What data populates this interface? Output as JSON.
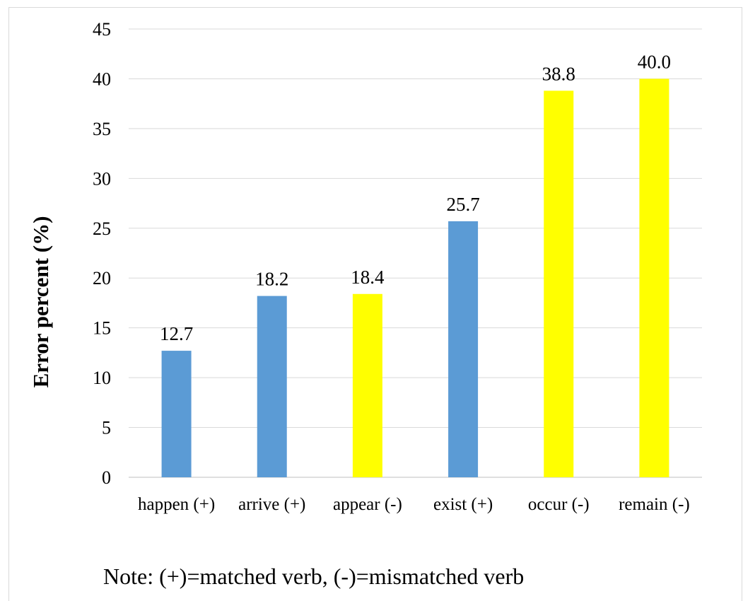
{
  "chart_data": {
    "type": "bar",
    "categories": [
      "happen (+)",
      "arrive (+)",
      "appear (-)",
      "exist (+)",
      "occur (-)",
      "remain (-)"
    ],
    "values": [
      12.7,
      18.2,
      18.4,
      25.7,
      38.8,
      40.0
    ],
    "value_labels": [
      "12.7",
      "18.2",
      "18.4",
      "25.7",
      "38.8",
      "40.0"
    ],
    "bar_colors": [
      "#5b9bd5",
      "#5b9bd5",
      "#ffff00",
      "#5b9bd5",
      "#ffff00",
      "#ffff00"
    ],
    "title": "",
    "xlabel": "",
    "ylabel": "Error percent (%)",
    "ylim": [
      0,
      45
    ],
    "yticks": [
      0,
      5,
      10,
      15,
      20,
      25,
      30,
      35,
      40,
      45
    ],
    "grid": true,
    "gridline_color": "#d9d9d9"
  },
  "note": "Note: (+)=matched verb, (-)=mismatched verb"
}
